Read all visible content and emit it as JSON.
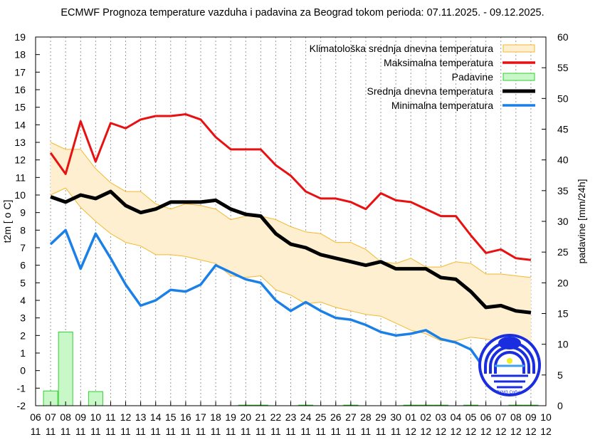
{
  "chart_data": {
    "type": "line",
    "title": "ECMWF Prognoza temperature vazduha i padavina za Beograd tokom perioda: 07.11.2025. - 09.12.2025.",
    "ylabel": "t2m [ o C]",
    "y2label": "padavine [mm/24h]",
    "ylim": [
      -2,
      19
    ],
    "y2lim": [
      0,
      60
    ],
    "yticks": [
      -2,
      -1,
      0,
      1,
      2,
      3,
      4,
      5,
      6,
      7,
      8,
      9,
      10,
      11,
      12,
      13,
      14,
      15,
      16,
      17,
      18,
      19
    ],
    "y2ticks": [
      0,
      5,
      10,
      15,
      20,
      25,
      30,
      35,
      40,
      45,
      50,
      55,
      60
    ],
    "grid": "vertical dotted",
    "legend_position": "top-right",
    "x_days": [
      "06",
      "07",
      "08",
      "09",
      "10",
      "11",
      "12",
      "13",
      "14",
      "15",
      "16",
      "17",
      "18",
      "19",
      "20",
      "21",
      "22",
      "23",
      "24",
      "25",
      "26",
      "27",
      "28",
      "29",
      "30",
      "01",
      "02",
      "03",
      "04",
      "05",
      "06",
      "07",
      "08",
      "09",
      "10"
    ],
    "x_months": [
      "11",
      "11",
      "11",
      "11",
      "11",
      "11",
      "11",
      "11",
      "11",
      "11",
      "11",
      "11",
      "11",
      "11",
      "11",
      "11",
      "11",
      "11",
      "11",
      "11",
      "11",
      "11",
      "11",
      "11",
      "11",
      "12",
      "12",
      "12",
      "12",
      "12",
      "12",
      "12",
      "12",
      "12",
      "12"
    ],
    "legend": [
      {
        "label": "Klimatološka srednja dnevna temperatura",
        "color": "#fdefcf",
        "edge": "#f5b830",
        "kind": "band"
      },
      {
        "label": "Maksimalna temperatura",
        "color": "#e81010",
        "kind": "line"
      },
      {
        "label": "Padavine",
        "color": "#c8f8c8",
        "edge": "#30d030",
        "kind": "bar"
      },
      {
        "label": "Srednja dnevna temperatura",
        "color": "#000000",
        "kind": "line"
      },
      {
        "label": "Minimalna temperatura",
        "color": "#1a80e8",
        "kind": "line"
      }
    ],
    "series": {
      "clim_upper": [
        13.0,
        12.6,
        12.6,
        11.5,
        10.7,
        10.2,
        10.2,
        9.5,
        9.2,
        9.5,
        9.4,
        9.2,
        8.6,
        8.8,
        8.8,
        8.6,
        8.2,
        7.9,
        7.8,
        7.3,
        7.3,
        6.9,
        6.2,
        6.1,
        6.4,
        5.9,
        5.9,
        6.2,
        6.1,
        5.5,
        5.5,
        5.4,
        5.3
      ],
      "clim_lower": [
        10.0,
        10.4,
        9.3,
        8.5,
        7.8,
        7.3,
        7.1,
        6.6,
        6.6,
        6.5,
        6.3,
        6.1,
        5.4,
        5.3,
        5.4,
        4.6,
        4.3,
        3.8,
        3.9,
        3.6,
        3.4,
        3.2,
        3.1,
        2.7,
        2.3,
        2.1,
        1.7,
        1.7,
        1.9,
        1.8,
        1.6,
        1.5,
        1.4
      ],
      "max": [
        12.4,
        11.2,
        14.2,
        11.9,
        14.1,
        13.8,
        14.3,
        14.5,
        14.5,
        14.6,
        14.3,
        13.3,
        12.6,
        12.6,
        12.6,
        11.7,
        11.1,
        10.2,
        9.8,
        9.8,
        9.6,
        9.2,
        10.1,
        9.7,
        9.6,
        9.2,
        8.8,
        8.8,
        7.7,
        6.7,
        6.9,
        6.4,
        6.3
      ],
      "mean": [
        9.9,
        9.6,
        10.0,
        9.8,
        10.2,
        9.4,
        9.0,
        9.2,
        9.6,
        9.6,
        9.6,
        9.7,
        9.2,
        8.9,
        8.8,
        7.8,
        7.2,
        7.0,
        6.6,
        6.4,
        6.2,
        6.0,
        6.2,
        5.8,
        5.8,
        5.8,
        5.3,
        5.2,
        4.5,
        3.6,
        3.7,
        3.4,
        3.3
      ],
      "min": [
        7.2,
        8.0,
        5.8,
        7.8,
        6.4,
        4.9,
        3.7,
        4.0,
        4.6,
        4.5,
        4.9,
        6.0,
        5.6,
        5.2,
        5.0,
        4.0,
        3.4,
        3.9,
        3.4,
        3.0,
        2.9,
        2.6,
        2.2,
        2.0,
        2.1,
        2.3,
        1.8,
        1.6,
        1.2,
        0.0,
        -0.5,
        -0.7,
        -0.8
      ],
      "precip": [
        2.4,
        12.0,
        0,
        2.3,
        0,
        0,
        0,
        0,
        0,
        0,
        0,
        0,
        0,
        0.1,
        0.1,
        0,
        0,
        0.1,
        0,
        0,
        0.1,
        0,
        0,
        0,
        0.1,
        0.1,
        0.1,
        0,
        0.1,
        0,
        0,
        0.1,
        0.1
      ]
    }
  },
  "logo": {
    "text": "РХМЗ Србије"
  }
}
